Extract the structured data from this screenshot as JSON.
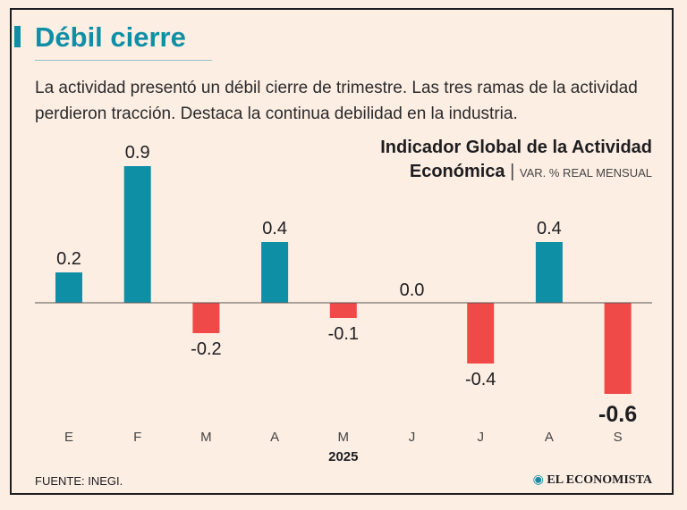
{
  "header": {
    "title": "Débil cierre",
    "subtitle": "La actividad presentó un débil cierre de trimestre. Las tres ramas de la actividad perdieron tracción. Destaca la continua debilidad en la industria."
  },
  "chart_title": {
    "line1": "Indicador Global de la Actividad",
    "line2": "Económica",
    "separator": "|",
    "unit": "VAR. % REAL MENSUAL"
  },
  "chart_data": {
    "type": "bar",
    "title": "Indicador Global de la Actividad Económica",
    "ylabel": "VAR. % REAL MENSUAL",
    "xlabel": "2025",
    "categories": [
      "E",
      "F",
      "M",
      "A",
      "M",
      "J",
      "J",
      "A",
      "S"
    ],
    "values": [
      0.2,
      0.9,
      -0.2,
      0.4,
      -0.1,
      0.0,
      -0.4,
      0.4,
      -0.6
    ],
    "value_labels": [
      "0.2",
      "0.9",
      "-0.2",
      "0.4",
      "-0.1",
      "0.0",
      "-0.4",
      "0.4",
      "-0.6"
    ],
    "highlight_index": 8,
    "ylim": [
      -0.6,
      0.9
    ],
    "grid": false,
    "legend": "none",
    "colors": {
      "positive": "#0f8fa6",
      "negative": "#ef4a47",
      "axis": "#555555"
    }
  },
  "footer": {
    "source": "FUENTE: INEGI.",
    "brand_icon": "globe-icon",
    "brand": "EL ECONOMISTA"
  },
  "colors": {
    "accent": "#0f8fa6",
    "background": "#fdeee3"
  }
}
